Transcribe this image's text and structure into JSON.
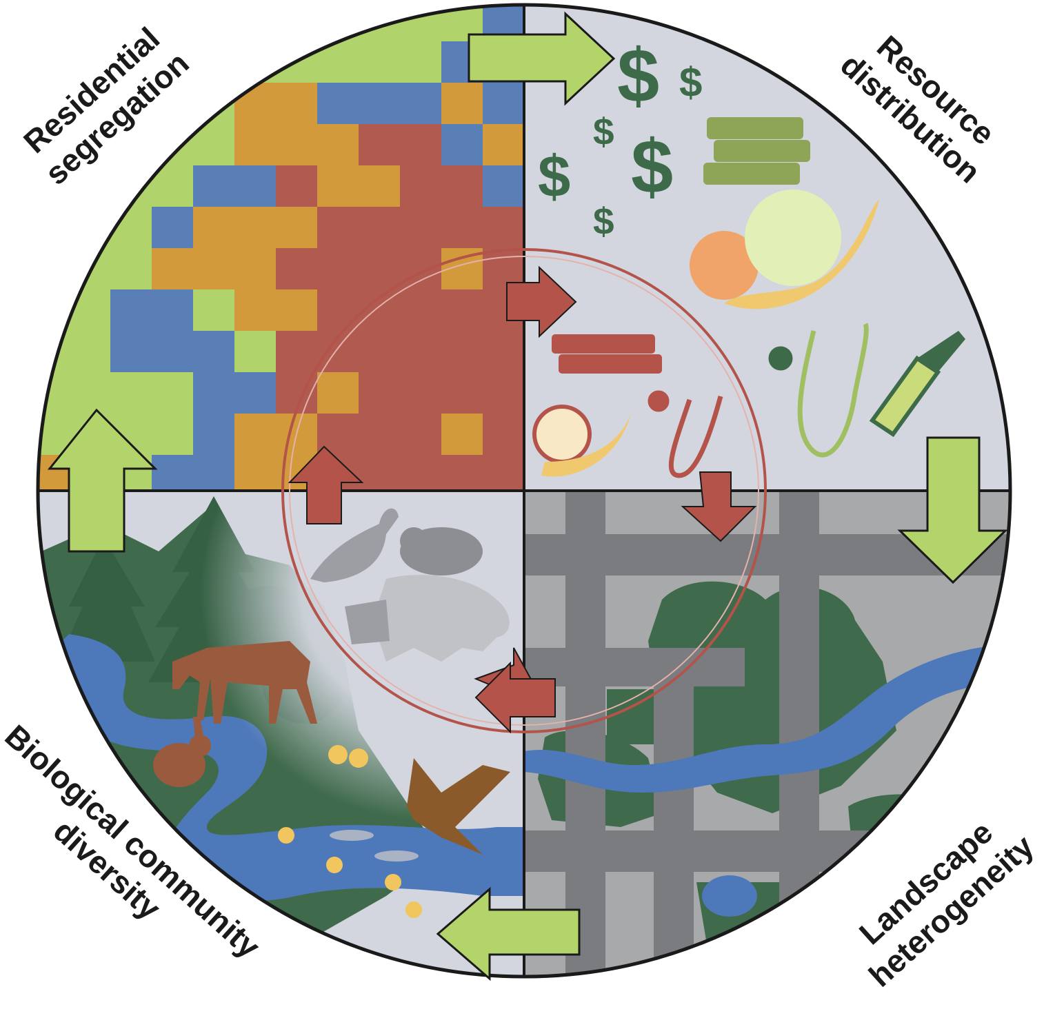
{
  "labels": {
    "top_left": [
      "Residential",
      "segregation"
    ],
    "top_right": [
      "Resource",
      "distribution"
    ],
    "bottom_right": [
      "Landscape",
      "heterogeneity"
    ],
    "bottom_left": [
      "Biological community",
      "diversity"
    ]
  },
  "colors": {
    "green_block": "#b1d36c",
    "blue_block": "#5a7fb7",
    "orange_block": "#d39a3c",
    "red_block": "#b05a50",
    "panel_gray": "#d3d6df",
    "road_gray": "#7a7c80",
    "lot_gray": "#a8a9ab",
    "dark_green": "#3f6a4b",
    "river_blue": "#4d78b9",
    "arrow_green": "#b3d46a",
    "arrow_red": "#b3534a",
    "ring_red": "#b3534a",
    "dollar_green": "#3d6b4a",
    "outline": "#1a1a1a"
  },
  "icons": {
    "top_right": [
      "dollar-icon",
      "books-icon",
      "fruit-bowl-icon",
      "stethoscope-icon",
      "syringe-icon"
    ],
    "bottom_left": [
      "tree-icon",
      "deer-icon",
      "rabbit-icon",
      "hawk-icon",
      "fish-icon",
      "flower-icon",
      "pigeon-icon",
      "rat-icon",
      "raccoon-icon"
    ]
  }
}
